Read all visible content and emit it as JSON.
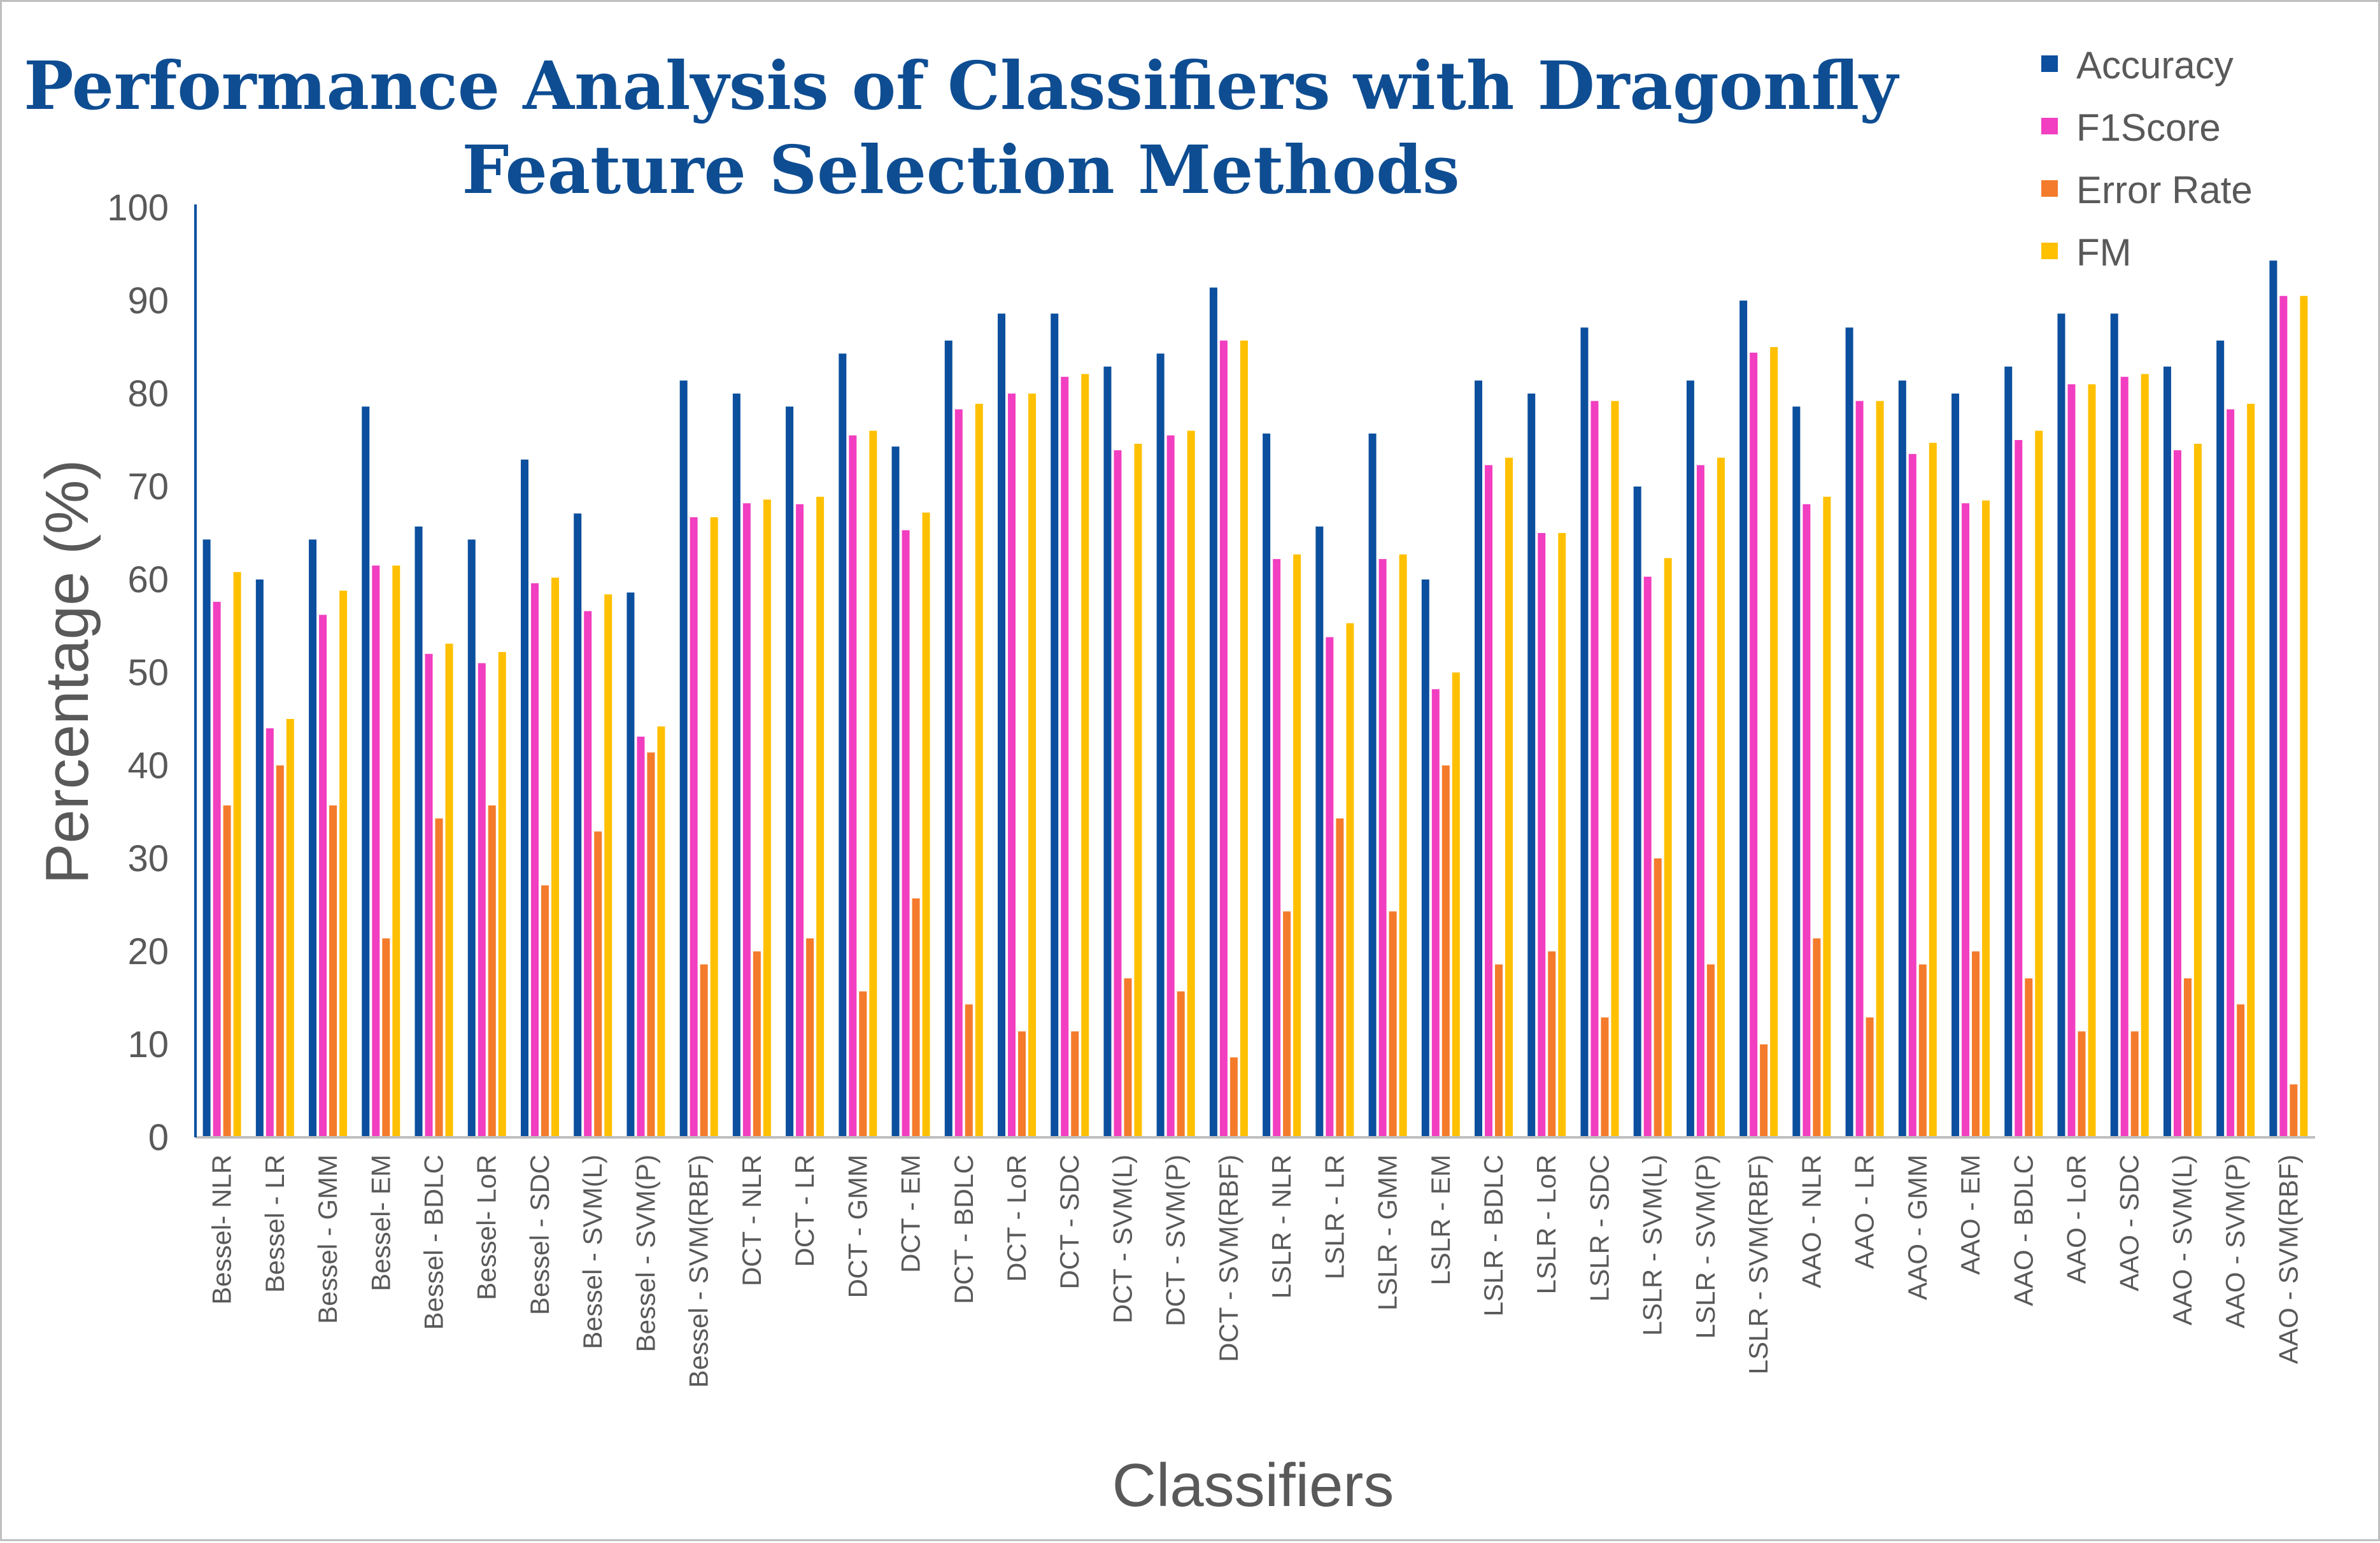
{
  "chart_data": {
    "type": "bar",
    "title": [
      "Performance Analysis of Classifiers with Dragonfly",
      "Feature Selection Methods"
    ],
    "xlabel": "Classifiers",
    "ylabel": "Percentage (%)",
    "ylim": [
      0,
      100
    ],
    "yticks": [
      "0",
      "10",
      "20",
      "30",
      "40",
      "50",
      "60",
      "70",
      "80",
      "90",
      "100"
    ],
    "legend_position": "top-right",
    "categories": [
      "Bessel- NLR",
      "Bessel - LR",
      "Bessel - GMM",
      "Bessel- EM",
      "Bessel - BDLC",
      "Bessel- LoR",
      "Bessel - SDC",
      "Bessel - SVM(L)",
      "Bessel - SVM(P)",
      "Bessel - SVM(RBF)",
      "DCT - NLR",
      "DCT - LR",
      "DCT - GMM",
      "DCT - EM",
      "DCT - BDLC",
      "DCT - LoR",
      "DCT - SDC",
      "DCT - SVM(L)",
      "DCT - SVM(P)",
      "DCT - SVM(RBF)",
      "LSLR - NLR",
      "LSLR - LR",
      "LSLR - GMM",
      "LSLR - EM",
      "LSLR - BDLC",
      "LSLR - LoR",
      "LSLR - SDC",
      "LSLR - SVM(L)",
      "LSLR - SVM(P)",
      "LSLR - SVM(RBF)",
      "AAO - NLR",
      "AAO - LR",
      "AAO - GMM",
      "AAO - EM",
      "AAO - BDLC",
      "AAO - LoR",
      "AAO - SDC",
      "AAO - SVM(L)",
      "AAO - SVM(P)",
      "AAO - SVM(RBF)"
    ],
    "series": [
      {
        "name": "Accuracy",
        "color": "#0b4f9e",
        "values": [
          64.3,
          60,
          64.3,
          78.6,
          65.7,
          64.3,
          72.9,
          67.1,
          58.6,
          81.4,
          80,
          78.6,
          84.3,
          74.3,
          85.7,
          88.6,
          88.6,
          82.9,
          84.3,
          91.4,
          75.7,
          65.7,
          75.7,
          60,
          81.4,
          80,
          87.1,
          70,
          81.4,
          90,
          78.6,
          87.1,
          81.4,
          80,
          82.9,
          88.6,
          88.6,
          82.9,
          85.7,
          94.3
        ]
      },
      {
        "name": "F1Score",
        "color": "#f23ec0",
        "values": [
          57.6,
          44,
          56.2,
          61.5,
          52,
          51,
          59.6,
          56.6,
          43.1,
          66.7,
          68.2,
          68.1,
          75.5,
          65.3,
          78.3,
          80,
          81.8,
          73.9,
          75.5,
          85.7,
          62.2,
          53.8,
          62.2,
          48.2,
          72.3,
          65,
          79.2,
          60.3,
          72.3,
          84.4,
          68.1,
          79.2,
          73.5,
          68.2,
          75,
          81,
          81.8,
          73.9,
          78.3,
          90.5
        ]
      },
      {
        "name": "Error Rate",
        "color": "#f47b2c",
        "values": [
          35.7,
          40,
          35.7,
          21.4,
          34.3,
          35.7,
          27.1,
          32.9,
          41.4,
          18.6,
          20,
          21.4,
          15.7,
          25.7,
          14.3,
          11.4,
          11.4,
          17.1,
          15.7,
          8.6,
          24.3,
          34.3,
          24.3,
          40,
          18.6,
          20,
          12.9,
          30,
          18.6,
          10,
          21.4,
          12.9,
          18.6,
          20,
          17.1,
          11.4,
          11.4,
          17.1,
          14.3,
          5.7
        ]
      },
      {
        "name": "FM",
        "color": "#ffc000",
        "values": [
          60.8,
          45,
          58.8,
          61.5,
          53.1,
          52.2,
          60.2,
          58.4,
          44.2,
          66.7,
          68.6,
          68.9,
          76,
          67.2,
          78.9,
          80,
          82.1,
          74.6,
          76,
          85.7,
          62.7,
          55.3,
          62.7,
          50,
          73.1,
          65,
          79.2,
          62.3,
          73.1,
          85,
          68.9,
          79.2,
          74.7,
          68.5,
          76,
          81,
          82.1,
          74.6,
          78.9,
          90.5
        ]
      }
    ]
  }
}
